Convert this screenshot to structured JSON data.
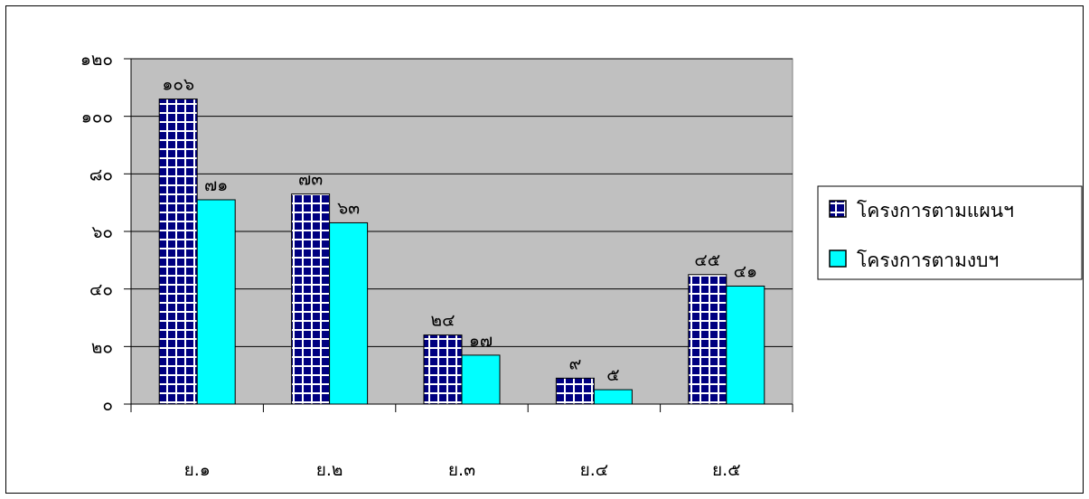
{
  "chart_data": {
    "type": "bar",
    "categories": [
      "ย.๑",
      "ย.๒",
      "ย.๓",
      "ย.๔",
      "ย.๕"
    ],
    "series": [
      {
        "name": "โครงการตามแผนฯ",
        "values": [
          106,
          73,
          24,
          9,
          45
        ],
        "labels": [
          "๑๐๖",
          "๗๓",
          "๒๔",
          "๙",
          "๔๕"
        ],
        "color": "#000080",
        "pattern": "grid"
      },
      {
        "name": "โครงการตามงบฯ",
        "values": [
          71,
          63,
          17,
          5,
          41
        ],
        "labels": [
          "๗๑",
          "๖๓",
          "๑๗",
          "๕",
          "๔๑"
        ],
        "color": "#00ffff",
        "pattern": "solid"
      }
    ],
    "ylim": [
      0,
      120
    ],
    "yticks": [
      0,
      20,
      40,
      60,
      80,
      100,
      120
    ],
    "ytick_labels": [
      "๐",
      "๒๐",
      "๔๐",
      "๖๐",
      "๘๐",
      "๑๐๐",
      "๑๒๐"
    ],
    "grid": true,
    "plot_background": "#c0c0c0",
    "legend_position": "right",
    "title": "",
    "xlabel": "",
    "ylabel": ""
  }
}
